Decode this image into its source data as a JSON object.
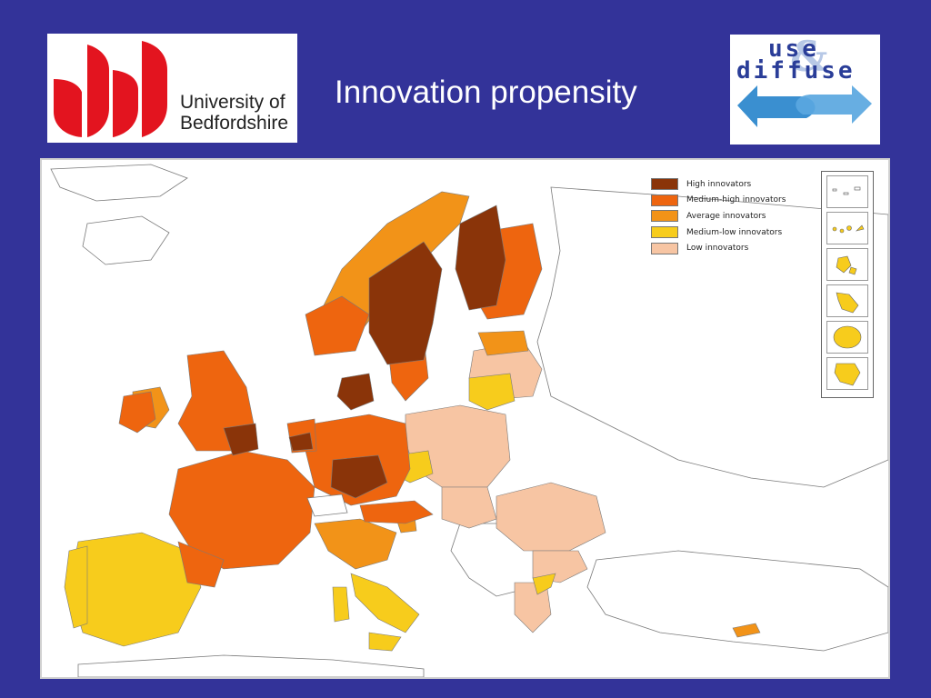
{
  "slide": {
    "title": "Innovation propensity"
  },
  "logo_left": {
    "line1": "University of",
    "line2": "Bedfordshire",
    "brand_color": "#e3141f"
  },
  "logo_right": {
    "word1": "use",
    "word2": "diffuse",
    "text_color": "#2a3d98",
    "arrow_color": "#3a8fd0"
  },
  "map": {
    "legend": [
      {
        "label": "High innovators",
        "color": "#8a3409"
      },
      {
        "label": "Medium-high innovators",
        "color": "#ee650f"
      },
      {
        "label": "Average innovators",
        "color": "#f29318"
      },
      {
        "label": "Medium-low innovators",
        "color": "#f7cc1c"
      },
      {
        "label": "Low innovators",
        "color": "#f7c5a3"
      }
    ],
    "non_eu_color": "#ffffff",
    "outline_color": "#7a7a7a"
  },
  "theme": {
    "background": "#333399"
  }
}
